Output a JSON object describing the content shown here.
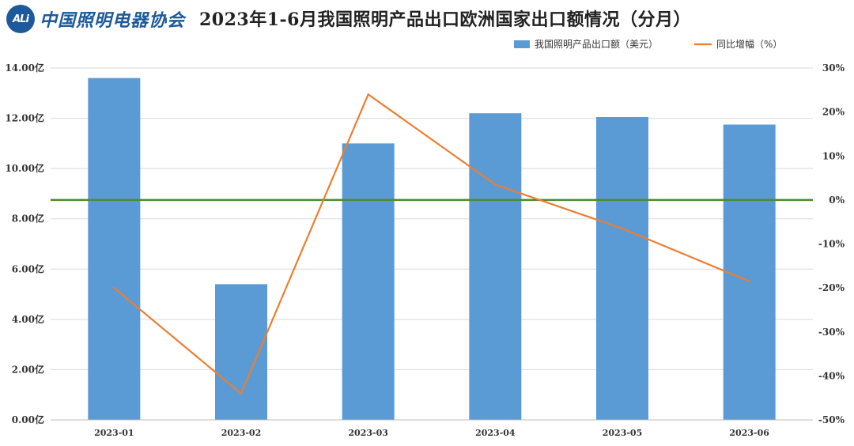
{
  "header": {
    "logo_mark": "ALi",
    "logo_text": "中国照明电器协会",
    "title": "2023年1-6月我国照明产品出口欧洲国家出口额情况（分月）"
  },
  "colors": {
    "bar": "#5b9bd5",
    "line": "#ed7d31",
    "zero_line": "#4e8a2f",
    "grid": "#d9d9d9"
  },
  "chart_data": {
    "type": "bar",
    "title": "2023年1-6月我国照明产品出口欧洲国家出口额情况（分月）",
    "categories": [
      "2023-01",
      "2023-02",
      "2023-03",
      "2023-04",
      "2023-05",
      "2023-06"
    ],
    "series": [
      {
        "name": "我国照明产品出口额（美元）",
        "type": "bar",
        "axis": "left",
        "values": [
          13.6,
          5.4,
          11.0,
          12.2,
          12.05,
          11.75
        ]
      },
      {
        "name": "同比增幅（%）",
        "type": "line",
        "axis": "right",
        "values": [
          -20,
          -44,
          24,
          3.5,
          -6.5,
          -18.5
        ]
      }
    ],
    "left_axis": {
      "ylim": [
        0,
        14
      ],
      "step": 2,
      "tick_labels": [
        "0.00亿",
        "2.00亿",
        "4.00亿",
        "6.00亿",
        "8.00亿",
        "10.00亿",
        "12.00亿",
        "14.00亿"
      ]
    },
    "right_axis": {
      "ylim": [
        -50,
        30
      ],
      "step": 10,
      "tick_labels": [
        "-50%",
        "-40%",
        "-30%",
        "-20%",
        "-10%",
        "0%",
        "10%",
        "20%",
        "30%"
      ]
    },
    "reference_line": {
      "axis": "right",
      "value": 0
    },
    "grid": true,
    "legend_position": "top-right"
  }
}
